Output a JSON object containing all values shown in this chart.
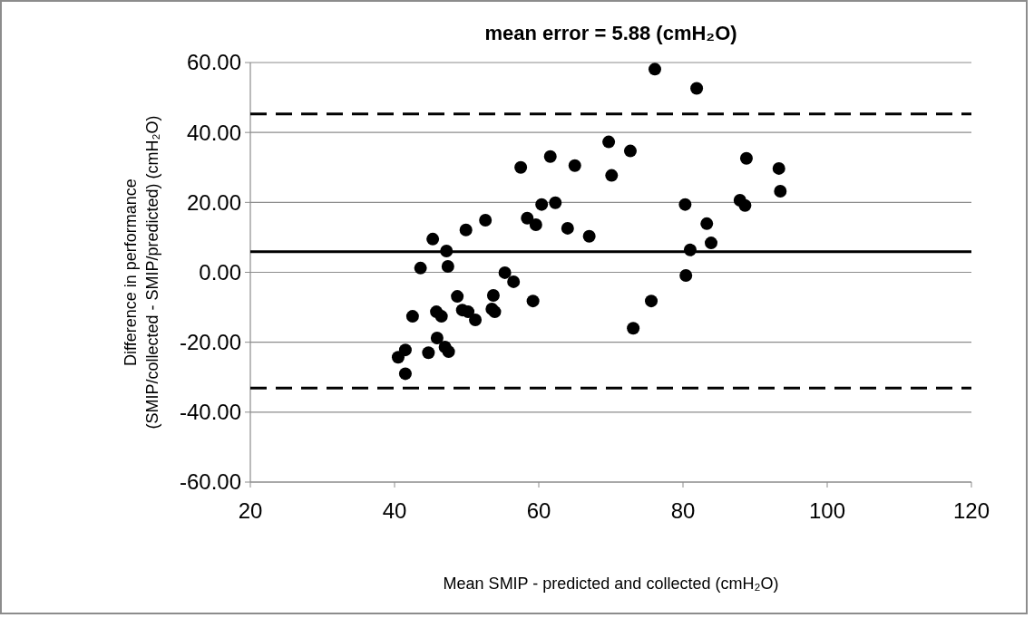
{
  "chart_data": {
    "type": "scatter",
    "title": "mean error = 5.88 (cmH₂O)",
    "xlabel": "Mean SMIP - predicted and collected (cmH₂O)",
    "ylabel": "Difference in performance\n(SMIP/collected - SMIP/predicted) (cmH₂O)",
    "xlim": [
      20,
      120
    ],
    "xticks": [
      20,
      40,
      60,
      80,
      100,
      120
    ],
    "ylim": [
      -60,
      60
    ],
    "yticks": [
      {
        "value": -60,
        "label": "-60.00"
      },
      {
        "value": -40,
        "label": "-40.00"
      },
      {
        "value": -20,
        "label": "-20.00"
      },
      {
        "value": 0,
        "label": "0.00"
      },
      {
        "value": 20,
        "label": "20.00"
      },
      {
        "value": 40,
        "label": "40.00"
      },
      {
        "value": 60,
        "label": "60.00"
      }
    ],
    "grid": "y",
    "marker": "circle",
    "ref_lines": [
      {
        "axis": "y",
        "value": 5.88,
        "color": "#000000",
        "line_style": "solid"
      },
      {
        "axis": "y",
        "value": 45.3,
        "color": "#000000",
        "line_style": "dashed"
      },
      {
        "axis": "y",
        "value": -33.1,
        "color": "#000000",
        "line_style": "dashed"
      }
    ],
    "series": [
      {
        "color": "#000000",
        "x": [
          69.7,
          72.7,
          61.6,
          57.5,
          65.0,
          70.1,
          60.4,
          62.3,
          58.4,
          59.6,
          52.6,
          49.9,
          64.0,
          67.0,
          45.3,
          47.2,
          43.6,
          47.4,
          55.3,
          56.5,
          59.2,
          48.7,
          53.7,
          42.5,
          45.8,
          46.5,
          49.4,
          50.2,
          51.2,
          53.5,
          53.9,
          45.9,
          41.5,
          40.5,
          44.7,
          47.0,
          47.5,
          41.5,
          73.1,
          75.6,
          76.1,
          81.9,
          88.8,
          93.3,
          93.5,
          80.3,
          87.9,
          88.6,
          83.3,
          83.9,
          81.0,
          80.4
        ],
        "values": [
          37.3,
          34.7,
          33.1,
          30.0,
          30.5,
          27.7,
          19.4,
          19.9,
          15.5,
          13.6,
          14.9,
          12.1,
          12.6,
          10.3,
          9.5,
          6.1,
          1.2,
          1.7,
          -0.1,
          -2.7,
          -8.2,
          -6.9,
          -6.6,
          -12.6,
          -11.3,
          -12.6,
          -10.8,
          -11.3,
          -13.6,
          -10.5,
          -11.3,
          -18.8,
          -22.2,
          -24.3,
          -23.0,
          -21.4,
          -22.7,
          -29.0,
          -16.0,
          -8.2,
          58.1,
          52.6,
          32.6,
          29.7,
          23.2,
          19.4,
          20.6,
          19.1,
          13.9,
          8.4,
          6.4,
          -0.9
        ]
      }
    ]
  }
}
